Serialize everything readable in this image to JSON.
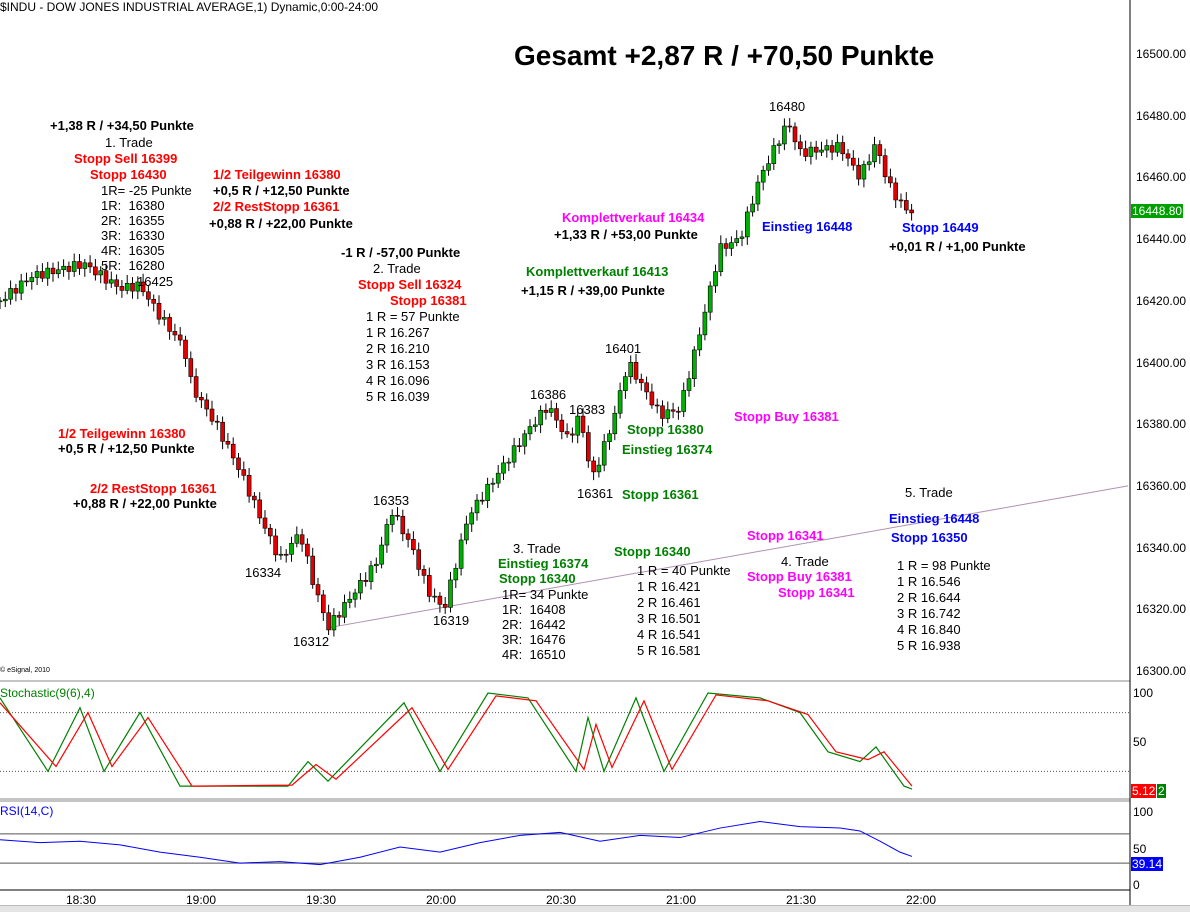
{
  "header": {
    "title": "$INDU - DOW JONES INDUSTRIAL AVERAGE,1) Dynamic,0:00-24:00",
    "copyright": "© eSignal, 2010"
  },
  "headline": "Gesamt +2,87 R / +70,50 Punkte",
  "colors": {
    "up": "#00b000",
    "down": "#e00000",
    "red": "#ff0000",
    "green": "#008000",
    "magenta": "#ff00ff",
    "blue": "#0000ff",
    "trendline": "#b090b0"
  },
  "annotations": [
    {
      "text": "+1,38 R / +34,50 Punkte",
      "color": "#000000",
      "bold": true
    },
    {
      "text": "1. Trade",
      "color": "#000000",
      "bold": false
    },
    {
      "text": "Stopp Sell 16399",
      "color": "#ff0000",
      "bold": true
    },
    {
      "text": "Stopp 16430",
      "color": "#ff0000",
      "bold": true
    },
    {
      "text": "1R= -25 Punkte",
      "color": "#000000",
      "bold": false
    },
    {
      "text": "1R:  16380",
      "color": "#000000",
      "bold": false
    },
    {
      "text": "2R:  16355",
      "color": "#000000",
      "bold": false
    },
    {
      "text": "3R:  16330",
      "color": "#000000",
      "bold": false
    },
    {
      "text": "4R:  16305",
      "color": "#000000",
      "bold": false
    },
    {
      "text": "5R:  16280",
      "color": "#000000",
      "bold": false
    },
    {
      "text": "16425",
      "color": "#000000",
      "bold": false
    },
    {
      "text": "1/2 Teilgewinn 16380",
      "color": "#ff0000",
      "bold": true
    },
    {
      "text": "+0,5 R / +12,50 Punkte",
      "color": "#000000",
      "bold": true
    },
    {
      "text": "2/2 RestStopp 16361",
      "color": "#ff0000",
      "bold": true
    },
    {
      "text": "+0,88 R / +22,00 Punkte",
      "color": "#000000",
      "bold": true
    },
    {
      "text": "-1 R / -57,00 Punkte",
      "color": "#000000",
      "bold": true
    },
    {
      "text": "2. Trade",
      "color": "#000000",
      "bold": false
    },
    {
      "text": "Stopp Sell 16324",
      "color": "#ff0000",
      "bold": true
    },
    {
      "text": "Stopp 16381",
      "color": "#ff0000",
      "bold": true
    },
    {
      "text": "1 R = 57 Punkte",
      "color": "#000000",
      "bold": false
    },
    {
      "text": "1 R 16.267",
      "color": "#000000",
      "bold": false
    },
    {
      "text": "2 R 16.210",
      "color": "#000000",
      "bold": false
    },
    {
      "text": "3 R 16.153",
      "color": "#000000",
      "bold": false
    },
    {
      "text": "4 R 16.096",
      "color": "#000000",
      "bold": false
    },
    {
      "text": "5 R 16.039",
      "color": "#000000",
      "bold": false
    },
    {
      "text": "1/2 Teilgewinn 16380",
      "color": "#ff0000",
      "bold": true
    },
    {
      "text": "+0,5 R / +12,50 Punkte",
      "color": "#000000",
      "bold": true
    },
    {
      "text": "2/2 RestStopp 16361",
      "color": "#ff0000",
      "bold": true
    },
    {
      "text": "+0,88 R / +22,00 Punkte",
      "color": "#000000",
      "bold": true
    },
    {
      "text": "16334",
      "color": "#000000",
      "bold": false
    },
    {
      "text": "16312",
      "color": "#000000",
      "bold": false
    },
    {
      "text": "16353",
      "color": "#000000",
      "bold": false
    },
    {
      "text": "16319",
      "color": "#000000",
      "bold": false
    },
    {
      "text": "16386",
      "color": "#000000",
      "bold": false
    },
    {
      "text": "16383",
      "color": "#000000",
      "bold": false
    },
    {
      "text": "16361",
      "color": "#000000",
      "bold": false
    },
    {
      "text": "16401",
      "color": "#000000",
      "bold": false
    },
    {
      "text": "16480",
      "color": "#000000",
      "bold": false
    },
    {
      "text": "Komplettverkauf 16434",
      "color": "#ff00ff",
      "bold": true
    },
    {
      "text": "+1,33 R / +53,00 Punkte",
      "color": "#000000",
      "bold": true
    },
    {
      "text": "Komplettverkauf 16413",
      "color": "#008000",
      "bold": true
    },
    {
      "text": "+1,15 R / +39,00 Punkte",
      "color": "#000000",
      "bold": true
    },
    {
      "text": "Einstieg 16448",
      "color": "#0000ff",
      "bold": true
    },
    {
      "text": "Stopp 16449",
      "color": "#0000ff",
      "bold": true
    },
    {
      "text": "+0,01 R / +1,00 Punkte",
      "color": "#000000",
      "bold": true
    },
    {
      "text": "Stopp Buy 16381",
      "color": "#ff00ff",
      "bold": true
    },
    {
      "text": "Stopp 16380",
      "color": "#008000",
      "bold": true
    },
    {
      "text": "Einstieg 16374",
      "color": "#008000",
      "bold": true
    },
    {
      "text": "Stopp 16361",
      "color": "#008000",
      "bold": true
    },
    {
      "text": "5. Trade",
      "color": "#000000",
      "bold": false
    },
    {
      "text": "Einstieg 16448",
      "color": "#0000ff",
      "bold": true
    },
    {
      "text": "Stopp 16350",
      "color": "#0000ff",
      "bold": true
    },
    {
      "text": "1 R = 98 Punkte",
      "color": "#000000",
      "bold": false
    },
    {
      "text": "1 R 16.546",
      "color": "#000000",
      "bold": false
    },
    {
      "text": "2 R 16.644",
      "color": "#000000",
      "bold": false
    },
    {
      "text": "3 R 16.742",
      "color": "#000000",
      "bold": false
    },
    {
      "text": "4 R 16.840",
      "color": "#000000",
      "bold": false
    },
    {
      "text": "5 R 16.938",
      "color": "#000000",
      "bold": false
    },
    {
      "text": "Stopp 16341",
      "color": "#ff00ff",
      "bold": true
    },
    {
      "text": "4. Trade",
      "color": "#000000",
      "bold": false
    },
    {
      "text": "Stopp Buy 16381",
      "color": "#ff00ff",
      "bold": true
    },
    {
      "text": "Stopp 16341",
      "color": "#ff00ff",
      "bold": true
    },
    {
      "text": "Stopp 16340",
      "color": "#008000",
      "bold": true
    },
    {
      "text": "1 R = 40 Punkte",
      "color": "#000000",
      "bold": false
    },
    {
      "text": "1 R 16.421",
      "color": "#000000",
      "bold": false
    },
    {
      "text": "2 R 16.461",
      "color": "#000000",
      "bold": false
    },
    {
      "text": "3 R 16.501",
      "color": "#000000",
      "bold": false
    },
    {
      "text": "4 R 16.541",
      "color": "#000000",
      "bold": false
    },
    {
      "text": "5 R 16.581",
      "color": "#000000",
      "bold": false
    },
    {
      "text": "3. Trade",
      "color": "#000000",
      "bold": false
    },
    {
      "text": "Einstieg 16374",
      "color": "#008000",
      "bold": true
    },
    {
      "text": "Stopp 16340",
      "color": "#008000",
      "bold": true
    },
    {
      "text": "1R= 34 Punkte",
      "color": "#000000",
      "bold": false
    },
    {
      "text": "1R:  16408",
      "color": "#000000",
      "bold": false
    },
    {
      "text": "2R:  16442",
      "color": "#000000",
      "bold": false
    },
    {
      "text": "3R:  16476",
      "color": "#000000",
      "bold": false
    },
    {
      "text": "4R:  16510",
      "color": "#000000",
      "bold": false
    }
  ],
  "chart_data": [
    {
      "type": "candlestick",
      "title": "$INDU - DOW JONES INDUSTRIAL AVERAGE,1) Dynamic,0:00-24:00",
      "x_ticks": [
        "18:30",
        "19:00",
        "19:30",
        "20:00",
        "20:30",
        "21:00",
        "21:30",
        "22:00"
      ],
      "y_ticks": [
        "16300.00",
        "16320.00",
        "16340.00",
        "16360.00",
        "16380.00",
        "16400.00",
        "16420.00",
        "16440.00",
        "16460.00",
        "16480.00",
        "16500.00"
      ],
      "ylim": [
        16300,
        16500
      ],
      "last_value": "16448.80",
      "price_path": [
        [
          "18:10",
          16420
        ],
        [
          "18:18",
          16428
        ],
        [
          "18:31",
          16432
        ],
        [
          "18:40",
          16424
        ],
        [
          "18:45",
          16425
        ],
        [
          "18:50",
          16415
        ],
        [
          "18:56",
          16405
        ],
        [
          "18:58",
          16392
        ],
        [
          "19:04",
          16380
        ],
        [
          "19:10",
          16365
        ],
        [
          "19:15",
          16350
        ],
        [
          "19:20",
          16336
        ],
        [
          "19:25",
          16345
        ],
        [
          "19:28",
          16330
        ],
        [
          "19:32",
          16314
        ],
        [
          "19:40",
          16328
        ],
        [
          "19:44",
          16335
        ],
        [
          "19:48",
          16352
        ],
        [
          "19:53",
          16340
        ],
        [
          "19:57",
          16326
        ],
        [
          "20:01",
          16320
        ],
        [
          "20:07",
          16350
        ],
        [
          "20:15",
          16365
        ],
        [
          "20:22",
          16378
        ],
        [
          "20:27",
          16386
        ],
        [
          "20:32",
          16375
        ],
        [
          "20:35",
          16383
        ],
        [
          "20:38",
          16362
        ],
        [
          "20:43",
          16380
        ],
        [
          "20:47",
          16400
        ],
        [
          "20:55",
          16383
        ],
        [
          "21:00",
          16385
        ],
        [
          "21:05",
          16410
        ],
        [
          "21:10",
          16437
        ],
        [
          "21:15",
          16440
        ],
        [
          "21:20",
          16460
        ],
        [
          "21:27",
          16478
        ],
        [
          "21:30",
          16468
        ],
        [
          "21:40",
          16470
        ],
        [
          "21:45",
          16460
        ],
        [
          "21:49",
          16471
        ],
        [
          "21:52",
          16458
        ],
        [
          "21:56",
          16450
        ],
        [
          "21:58",
          16449
        ]
      ],
      "trendline": [
        [
          "19:32",
          16314
        ],
        [
          "22:52",
          16360
        ]
      ]
    },
    {
      "type": "line",
      "title": "Stochastic(9(6),4)",
      "ylim": [
        0,
        100
      ],
      "y_ticks": [
        "100",
        "50"
      ],
      "levels": [
        80,
        20
      ],
      "last_values": [
        "5.12",
        "2"
      ],
      "series": [
        {
          "color": "#008000",
          "values": [
            [
              "18:10",
              95
            ],
            [
              "18:22",
              20
            ],
            [
              "18:30",
              85
            ],
            [
              "18:36",
              20
            ],
            [
              "18:45",
              80
            ],
            [
              "18:55",
              5
            ],
            [
              "19:22",
              5
            ],
            [
              "19:27",
              30
            ],
            [
              "19:32",
              10
            ],
            [
              "19:51",
              90
            ],
            [
              "20:00",
              20
            ],
            [
              "20:12",
              100
            ],
            [
              "20:22",
              95
            ],
            [
              "20:34",
              20
            ],
            [
              "20:37",
              75
            ],
            [
              "20:41",
              20
            ],
            [
              "20:49",
              95
            ],
            [
              "20:56",
              20
            ],
            [
              "21:07",
              100
            ],
            [
              "21:20",
              95
            ],
            [
              "21:30",
              80
            ],
            [
              "21:37",
              40
            ],
            [
              "21:45",
              30
            ],
            [
              "21:49",
              45
            ],
            [
              "21:56",
              5
            ],
            [
              "21:58",
              2
            ]
          ]
        },
        {
          "color": "#ff0000",
          "values": [
            [
              "18:10",
              90
            ],
            [
              "18:24",
              25
            ],
            [
              "18:32",
              80
            ],
            [
              "18:38",
              25
            ],
            [
              "18:47",
              75
            ],
            [
              "18:58",
              5
            ],
            [
              "19:23",
              6
            ],
            [
              "19:29",
              27
            ],
            [
              "19:34",
              12
            ],
            [
              "19:53",
              85
            ],
            [
              "20:02",
              22
            ],
            [
              "20:14",
              97
            ],
            [
              "20:24",
              92
            ],
            [
              "20:36",
              22
            ],
            [
              "20:39",
              68
            ],
            [
              "20:43",
              24
            ],
            [
              "20:51",
              92
            ],
            [
              "20:58",
              22
            ],
            [
              "21:09",
              98
            ],
            [
              "21:22",
              92
            ],
            [
              "21:32",
              78
            ],
            [
              "21:39",
              40
            ],
            [
              "21:47",
              32
            ],
            [
              "21:51",
              40
            ],
            [
              "21:58",
              5
            ]
          ]
        }
      ]
    },
    {
      "type": "line",
      "title": "RSI(14,C)",
      "ylim": [
        0,
        100
      ],
      "y_ticks": [
        "100",
        "50",
        "0"
      ],
      "levels": [
        70,
        30
      ],
      "last_value": "39.14",
      "series": [
        {
          "color": "#0000ff",
          "values": [
            [
              "18:10",
              62
            ],
            [
              "18:20",
              58
            ],
            [
              "18:30",
              60
            ],
            [
              "18:40",
              55
            ],
            [
              "18:50",
              45
            ],
            [
              "19:00",
              38
            ],
            [
              "19:10",
              30
            ],
            [
              "19:20",
              32
            ],
            [
              "19:30",
              28
            ],
            [
              "19:40",
              38
            ],
            [
              "19:50",
              52
            ],
            [
              "20:00",
              45
            ],
            [
              "20:10",
              58
            ],
            [
              "20:20",
              68
            ],
            [
              "20:30",
              72
            ],
            [
              "20:40",
              60
            ],
            [
              "20:50",
              68
            ],
            [
              "21:00",
              65
            ],
            [
              "21:10",
              78
            ],
            [
              "21:20",
              87
            ],
            [
              "21:30",
              80
            ],
            [
              "21:40",
              78
            ],
            [
              "21:45",
              74
            ],
            [
              "21:50",
              60
            ],
            [
              "21:55",
              45
            ],
            [
              "21:58",
              39.14
            ]
          ]
        }
      ]
    }
  ]
}
